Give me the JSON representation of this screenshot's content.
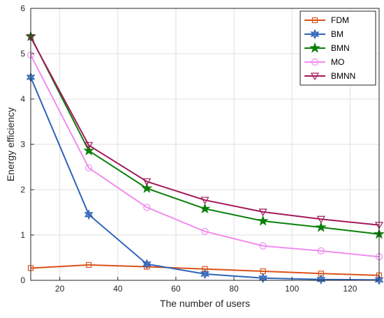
{
  "chart_data": {
    "type": "line",
    "xlabel": "The number of users",
    "ylabel": "Energy efficiency",
    "xlim": [
      10,
      130
    ],
    "ylim": [
      0,
      6
    ],
    "xticks": [
      20,
      40,
      60,
      80,
      100,
      120
    ],
    "yticks": [
      0,
      1,
      2,
      3,
      4,
      5,
      6
    ],
    "grid": true,
    "legend_position": "top-right",
    "x": [
      10,
      30,
      50,
      70,
      90,
      110,
      130
    ],
    "series": [
      {
        "name": "FDM",
        "color": "#D95319",
        "marker": "square",
        "values": [
          0.27,
          0.34,
          0.3,
          0.25,
          0.2,
          0.15,
          0.11
        ]
      },
      {
        "name": "BM",
        "color": "#2E63B8",
        "marker": "hexagram",
        "values": [
          4.48,
          1.45,
          0.36,
          0.14,
          0.05,
          0.02,
          0.01
        ]
      },
      {
        "name": "BMN",
        "color": "#0A7F0A",
        "marker": "pentagram",
        "values": [
          5.38,
          2.86,
          2.03,
          1.58,
          1.31,
          1.17,
          1.02
        ]
      },
      {
        "name": "MO",
        "color": "#F08CF0",
        "marker": "circle",
        "values": [
          4.97,
          2.48,
          1.61,
          1.08,
          0.76,
          0.65,
          0.52
        ]
      },
      {
        "name": "BMNN",
        "color": "#A2195A",
        "marker": "triangle-down",
        "values": [
          5.36,
          2.98,
          2.18,
          1.77,
          1.51,
          1.35,
          1.22
        ]
      }
    ]
  }
}
